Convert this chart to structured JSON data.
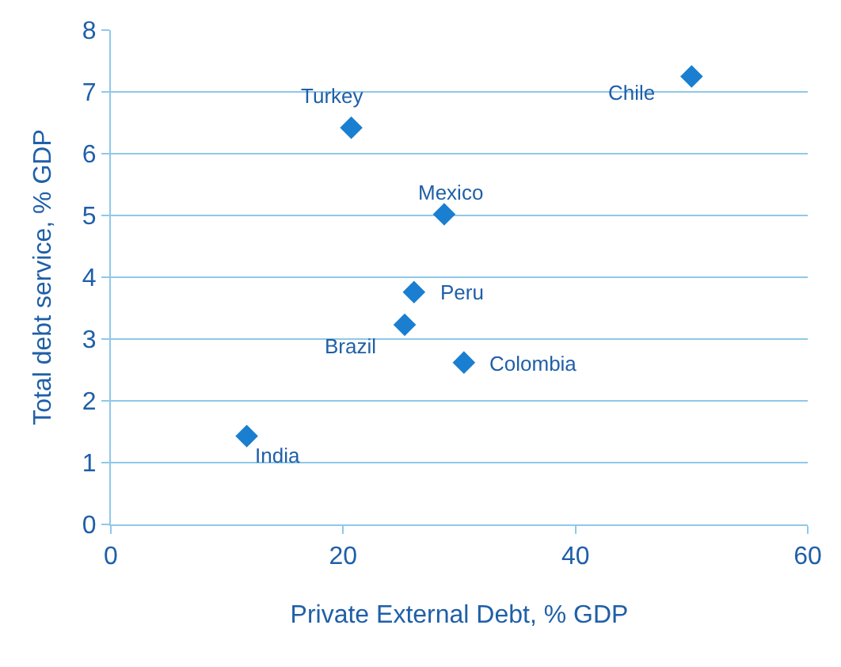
{
  "chart_data": {
    "type": "scatter",
    "xlabel": "Private External Debt, % GDP",
    "ylabel": "Total debt service, % GDP",
    "x": [
      50.0,
      20.7,
      28.7,
      26.1,
      25.3,
      30.4,
      11.7
    ],
    "series": [
      {
        "color": "#1a7fd0",
        "values": [
          7.25,
          6.42,
          5.02,
          3.76,
          3.23,
          2.62,
          1.43
        ]
      }
    ],
    "annotations": [
      {
        "text": "Chile",
        "x": 50.0,
        "y": 7.25
      },
      {
        "text": "Turkey",
        "x": 20.7,
        "y": 6.42
      },
      {
        "text": "Mexico",
        "x": 28.7,
        "y": 5.02
      },
      {
        "text": "Peru",
        "x": 26.1,
        "y": 3.76
      },
      {
        "text": "Brazil",
        "x": 25.3,
        "y": 3.23
      },
      {
        "text": "Colombia",
        "x": 30.4,
        "y": 2.62
      },
      {
        "text": "India",
        "x": 11.7,
        "y": 1.43
      }
    ],
    "xlim": [
      0,
      60
    ],
    "xticks": [
      0,
      20,
      40,
      60
    ],
    "ylim": [
      0,
      8
    ],
    "yticks": [
      0,
      1,
      2,
      3,
      4,
      5,
      6,
      7,
      8
    ],
    "grid": "y",
    "marker": "diamond"
  }
}
